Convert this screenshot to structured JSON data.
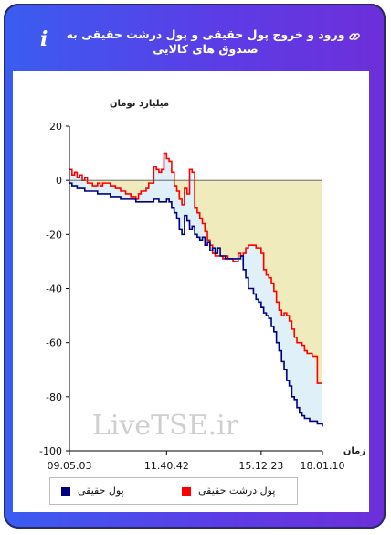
{
  "header": {
    "title": "ورود و خروج پول حقیقی و پول درشت حقیقی به صندوق های کالایی",
    "info_icon": "info-icon",
    "link_icon": "link-icon"
  },
  "watermark": "LiveTSE.ir",
  "colors": {
    "real_money": "#000080",
    "big_real_money": "#ff0000",
    "fill_low": "#dff0f9",
    "fill_high": "#f0ebbd"
  },
  "legend": {
    "items": [
      {
        "label": "پول حقیقی",
        "color": "#000080"
      },
      {
        "label": "پول درشت حقیقی",
        "color": "#ff0000"
      }
    ]
  },
  "chart_data": {
    "type": "line",
    "ylabel": "میلیارد تومان",
    "xlabel": "زمان",
    "ylim": [
      -100,
      20
    ],
    "yticks": [
      20,
      0,
      -20,
      -40,
      -60,
      -80,
      -100
    ],
    "xticks": [
      "09.05.03",
      "11.40.42",
      "15.12.23",
      "18.01.10"
    ],
    "x_tick_index": [
      0,
      38,
      75,
      99
    ],
    "n_points": 100,
    "grid": false,
    "legend_position": "bottom",
    "series": [
      {
        "name": "پول حقیقی",
        "values": [
          -1,
          -2,
          -2,
          -3,
          -3,
          -3,
          -4,
          -4,
          -4,
          -4,
          -4,
          -5,
          -5,
          -5,
          -5,
          -5,
          -6,
          -6,
          -6,
          -6,
          -7,
          -7,
          -7,
          -7,
          -7,
          -7,
          -8,
          -8,
          -8,
          -8,
          -8,
          -8,
          -8,
          -7,
          -7,
          -8,
          -8,
          -8,
          -7,
          -8,
          -10,
          -12,
          -14,
          -18,
          -20,
          -13,
          -15,
          -18,
          -17,
          -20,
          -21,
          -22,
          -21,
          -24,
          -23,
          -26,
          -25,
          -27,
          -25,
          -28,
          -28,
          -29,
          -29,
          -29,
          -29,
          -29,
          -29,
          -28,
          -33,
          -36,
          -40,
          -40,
          -42,
          -44,
          -45,
          -47,
          -49,
          -50,
          -51,
          -54,
          -56,
          -60,
          -63,
          -67,
          -70,
          -74,
          -76,
          -80,
          -81,
          -84,
          -86,
          -87,
          -88,
          -88,
          -89,
          -89,
          -89,
          -90,
          -90,
          -91
        ]
      },
      {
        "name": "پول درشت حقیقی",
        "values": [
          4,
          2,
          3,
          1,
          2,
          0,
          1,
          -1,
          -1,
          -2,
          -2,
          -1,
          -2,
          -1,
          -1,
          -1,
          -2,
          -2,
          -3,
          -3,
          -4,
          -4,
          -5,
          -5,
          -6,
          -6,
          -7,
          -5,
          -4,
          -4,
          -3,
          -1,
          -1,
          5,
          4,
          3,
          4,
          10,
          8,
          7,
          3,
          -2,
          -4,
          -7,
          -9,
          -3,
          -5,
          4,
          3,
          -10,
          -12,
          -14,
          -16,
          -19,
          -22,
          -24,
          -27,
          -28,
          -28,
          -28,
          -29,
          -28,
          -29,
          -29,
          -30,
          -30,
          -27,
          -28,
          -27,
          -25,
          -24,
          -24,
          -24,
          -25,
          -25,
          -27,
          -33,
          -35,
          -36,
          -38,
          -41,
          -45,
          -48,
          -50,
          -49,
          -50,
          -52,
          -55,
          -58,
          -60,
          -60,
          -61,
          -63,
          -64,
          -64,
          -65,
          -65,
          -75,
          -75,
          -75
        ]
      }
    ]
  }
}
